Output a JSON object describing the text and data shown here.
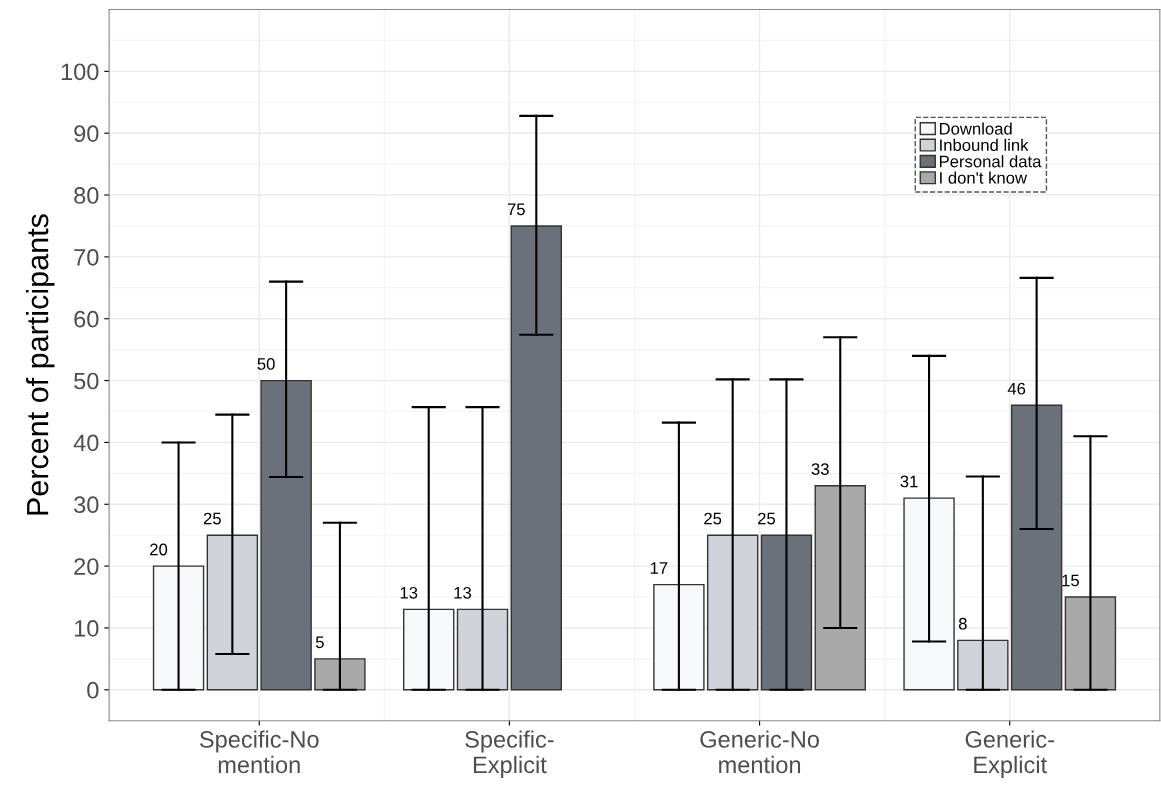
{
  "chart_data": {
    "type": "bar",
    "categories": [
      "Specific-No\nmention",
      "Specific-\nExplicit",
      "Generic-No\nmention",
      "Generic-\nExplicit"
    ],
    "ylabel": "Percent of participants",
    "ylim": [
      -5,
      110
    ],
    "yticks": [
      0,
      10,
      20,
      30,
      40,
      50,
      60,
      70,
      80,
      90,
      100
    ],
    "grid": true,
    "legend": "top right",
    "series": [
      {
        "name": "Download",
        "color": "#f7f8fa",
        "values": [
          20,
          13,
          17,
          31
        ],
        "errors": [
          [
            0,
            40
          ],
          [
            0,
            45.7
          ],
          [
            0,
            43.2
          ],
          [
            7.8,
            54
          ]
        ],
        "value_labels": [
          "20",
          "13",
          "17",
          "31"
        ]
      },
      {
        "name": "Inbound link",
        "color": "#d0d3d9",
        "values": [
          25,
          13,
          25,
          8
        ],
        "errors": [
          [
            5.8,
            44.5
          ],
          [
            0,
            45.7
          ],
          [
            0,
            50.2
          ],
          [
            0,
            34.5
          ]
        ],
        "value_labels": [
          "25",
          "13",
          "25",
          "8"
        ]
      },
      {
        "name": "Personal data",
        "color": "#6b717a",
        "values": [
          50,
          75,
          25,
          46
        ],
        "errors": [
          [
            34.4,
            66
          ],
          [
            57.4,
            92.8
          ],
          [
            0,
            50.2
          ],
          [
            26,
            66.6
          ]
        ],
        "value_labels": [
          "50",
          "75",
          "25",
          "46"
        ]
      },
      {
        "name": "I don't know",
        "color": "#a9a9a9",
        "values": [
          5,
          null,
          33,
          15
        ],
        "errors": [
          [
            0,
            27
          ],
          null,
          [
            10,
            57
          ],
          [
            0,
            41
          ]
        ],
        "value_labels": [
          "5",
          null,
          "33",
          "15"
        ]
      }
    ]
  }
}
